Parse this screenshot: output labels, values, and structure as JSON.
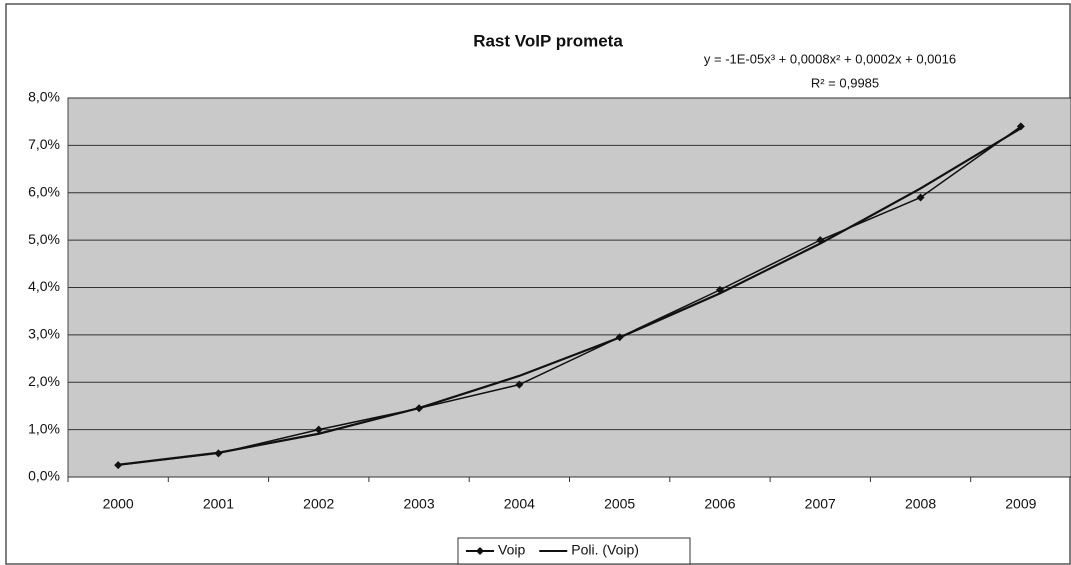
{
  "chart_data": {
    "type": "line",
    "title": "Rast VoIP prometa",
    "annotations": [
      "y = -1E-05x³ + 0,0008x² + 0,0002x + 0,0016",
      "R² = 0,9985"
    ],
    "categories": [
      "2000",
      "2001",
      "2002",
      "2003",
      "2004",
      "2005",
      "2006",
      "2007",
      "2008",
      "2009"
    ],
    "series": [
      {
        "name": "Voip",
        "color": "#111111",
        "markers": true,
        "values": [
          0.25,
          0.5,
          1.0,
          1.45,
          1.95,
          2.95,
          3.95,
          5.0,
          5.9,
          7.4
        ]
      },
      {
        "name": "Poli. (Voip)",
        "color": "#111111",
        "markers": false,
        "values": [
          0.259,
          0.512,
          0.913,
          1.456,
          2.135,
          2.944,
          3.877,
          4.928,
          6.091,
          7.36
        ]
      }
    ],
    "ylim": [
      0,
      8
    ],
    "yticks": [
      {
        "value": 0,
        "label": "0,0%"
      },
      {
        "value": 1,
        "label": "1,0%"
      },
      {
        "value": 2,
        "label": "2,0%"
      },
      {
        "value": 3,
        "label": "3,0%"
      },
      {
        "value": 4,
        "label": "4,0%"
      },
      {
        "value": 5,
        "label": "5,0%"
      },
      {
        "value": 6,
        "label": "6,0%"
      },
      {
        "value": 7,
        "label": "7,0%"
      },
      {
        "value": 8,
        "label": "8,0%"
      }
    ],
    "grid": true,
    "legend": "bottom"
  }
}
